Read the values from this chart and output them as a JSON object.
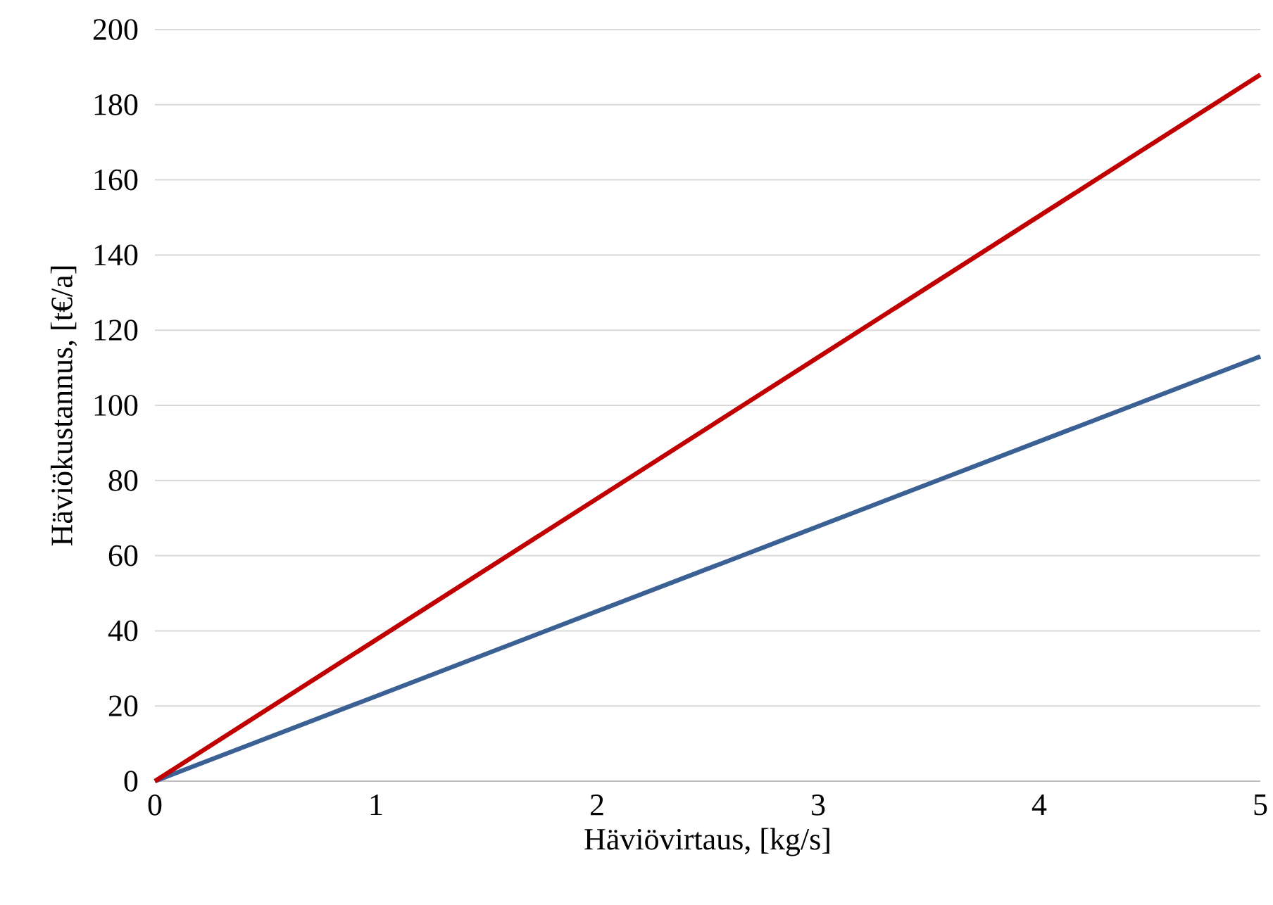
{
  "chart_data": {
    "type": "line",
    "xlabel": "Häviövirtaus, [kg/s]",
    "ylabel": "Häviökustannus, [t€/a]",
    "x": [
      0,
      5
    ],
    "series": [
      {
        "color": "#3a6094",
        "values": [
          0,
          113
        ]
      },
      {
        "color": "#c00000",
        "values": [
          0,
          188
        ]
      }
    ],
    "xlim": [
      0,
      5
    ],
    "xticks": [
      0,
      1,
      2,
      3,
      4,
      5
    ],
    "ylim": [
      0,
      200
    ],
    "yticks": [
      0,
      20,
      40,
      60,
      80,
      100,
      120,
      140,
      160,
      180,
      200
    ],
    "grid": "y",
    "marker": "none",
    "line_style": "solid"
  }
}
